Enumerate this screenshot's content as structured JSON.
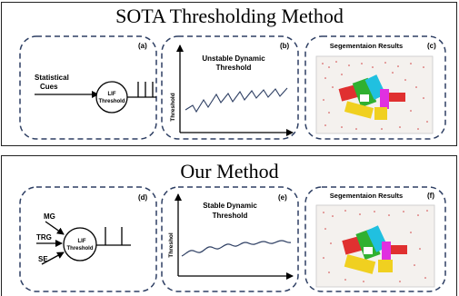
{
  "sota": {
    "title": "SOTA Thresholding Method",
    "panel_a": {
      "tag": "(a)",
      "input_line1": "Statistical",
      "input_line2": "Cues",
      "neuron_line1": "LIF",
      "neuron_line2": "Threshold"
    },
    "panel_b": {
      "tag": "(b)",
      "title_line1": "Unstable Dynamic",
      "title_line2": "Threshold",
      "ylabel": "Threshold"
    },
    "panel_c": {
      "tag": "(c)",
      "title": "Segementaion Results"
    }
  },
  "ours": {
    "title": "Our Method",
    "panel_d": {
      "tag": "(d)",
      "inputs": [
        "MG",
        "TRG",
        "SE"
      ],
      "neuron_line1": "LIF",
      "neuron_line2": "Threshold"
    },
    "panel_e": {
      "tag": "(e)",
      "title_line1": "Stable Dynamic",
      "title_line2": "Threshold",
      "ylabel": "Threshol"
    },
    "panel_f": {
      "tag": "(f)",
      "title": "Segementaion Results"
    }
  },
  "colors": {
    "dashed_border": "#2e3f63",
    "image_bg": "#f4f1ee",
    "points": [
      "#e04040",
      "#f0d020",
      "#40c040",
      "#e020e0",
      "#20c0e0",
      "#c04040"
    ]
  }
}
